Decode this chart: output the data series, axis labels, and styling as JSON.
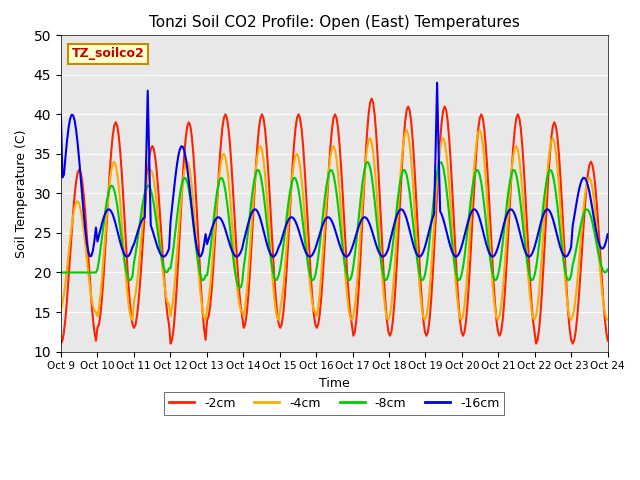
{
  "title": "Tonzi Soil CO2 Profile: Open (East) Temperatures",
  "xlabel": "Time",
  "ylabel": "Soil Temperature (C)",
  "ylim": [
    10,
    50
  ],
  "legend_label": "TZ_soilco2",
  "series_labels": [
    "-2cm",
    "-4cm",
    "-8cm",
    "-16cm"
  ],
  "series_colors": [
    "#ff2200",
    "#ffaa00",
    "#00cc00",
    "#0000ee"
  ],
  "line_width": 1.5,
  "xtick_labels": [
    "Oct 9",
    "Oct 10",
    "Oct 11",
    "Oct 12",
    "Oct 13",
    "Oct 14",
    "Oct 15",
    "Oct 16",
    "Oct 17",
    "Oct 18",
    "Oct 19",
    "Oct 20",
    "Oct 21",
    "Oct 22",
    "Oct 23",
    "Oct 24"
  ],
  "background_color": "#e8e8e8",
  "figure_color": "#ffffff"
}
